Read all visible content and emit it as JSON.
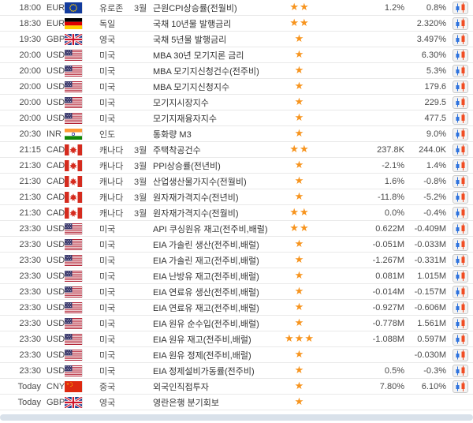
{
  "colors": {
    "star": "#f7941e",
    "chart_blue": "#2d72de",
    "chart_red": "#f14c22",
    "row_border": "#e9e9e9",
    "footer": "#d9e1ea",
    "event_text": "#333333",
    "body_text": "#4a4a4a"
  },
  "icons": {
    "star": "★",
    "chart_button": "candlestick-chart-icon"
  },
  "table": {
    "rows": [
      {
        "time": "18:00",
        "currency": "EUR",
        "flag": "eu",
        "country": "유로존",
        "month": "3월",
        "event": "근원CPI상승률(전월비)",
        "stars": 2,
        "value1": "1.2%",
        "value2": "0.8%",
        "chart": true
      },
      {
        "time": "18:30",
        "currency": "EUR",
        "flag": "de",
        "country": "독일",
        "month": "",
        "event": "국채 10년물 발행금리",
        "stars": 2,
        "value1": "",
        "value2": "2.320%",
        "chart": true
      },
      {
        "time": "19:30",
        "currency": "GBP",
        "flag": "gb",
        "country": "영국",
        "month": "",
        "event": "국채 5년물 발행금리",
        "stars": 1,
        "value1": "",
        "value2": "3.497%",
        "chart": true
      },
      {
        "time": "20:00",
        "currency": "USD",
        "flag": "us",
        "country": "미국",
        "month": "",
        "event": "MBA 30년 모기지론 금리",
        "stars": 1,
        "value1": "",
        "value2": "6.30%",
        "chart": true
      },
      {
        "time": "20:00",
        "currency": "USD",
        "flag": "us",
        "country": "미국",
        "month": "",
        "event": "MBA 모기지신청건수(전주비)",
        "stars": 1,
        "value1": "",
        "value2": "5.3%",
        "chart": true
      },
      {
        "time": "20:00",
        "currency": "USD",
        "flag": "us",
        "country": "미국",
        "month": "",
        "event": "MBA 모기지신청지수",
        "stars": 1,
        "value1": "",
        "value2": "179.6",
        "chart": true
      },
      {
        "time": "20:00",
        "currency": "USD",
        "flag": "us",
        "country": "미국",
        "month": "",
        "event": "모기지시장지수",
        "stars": 1,
        "value1": "",
        "value2": "229.5",
        "chart": true
      },
      {
        "time": "20:00",
        "currency": "USD",
        "flag": "us",
        "country": "미국",
        "month": "",
        "event": "모기지재융자지수",
        "stars": 1,
        "value1": "",
        "value2": "477.5",
        "chart": true
      },
      {
        "time": "20:30",
        "currency": "INR",
        "flag": "in",
        "country": "인도",
        "month": "",
        "event": "통화량 M3",
        "stars": 1,
        "value1": "",
        "value2": "9.0%",
        "chart": true
      },
      {
        "time": "21:15",
        "currency": "CAD",
        "flag": "ca",
        "country": "캐나다",
        "month": "3월",
        "event": "주택착공건수",
        "stars": 2,
        "value1": "237.8K",
        "value2": "244.0K",
        "chart": true
      },
      {
        "time": "21:30",
        "currency": "CAD",
        "flag": "ca",
        "country": "캐나다",
        "month": "3월",
        "event": "PPI상승률(전년비)",
        "stars": 1,
        "value1": "-2.1%",
        "value2": "1.4%",
        "chart": true
      },
      {
        "time": "21:30",
        "currency": "CAD",
        "flag": "ca",
        "country": "캐나다",
        "month": "3월",
        "event": "산업생산물가지수(전월비)",
        "stars": 1,
        "value1": "1.6%",
        "value2": "-0.8%",
        "chart": true
      },
      {
        "time": "21:30",
        "currency": "CAD",
        "flag": "ca",
        "country": "캐나다",
        "month": "3월",
        "event": "원자재가격지수(전년비)",
        "stars": 1,
        "value1": "-11.8%",
        "value2": "-5.2%",
        "chart": true
      },
      {
        "time": "21:30",
        "currency": "CAD",
        "flag": "ca",
        "country": "캐나다",
        "month": "3월",
        "event": "원자재가격지수(전월비)",
        "stars": 2,
        "value1": "0.0%",
        "value2": "-0.4%",
        "chart": true
      },
      {
        "time": "23:30",
        "currency": "USD",
        "flag": "us",
        "country": "미국",
        "month": "",
        "event": "API 쿠싱원유 재고(전주비,배럴)",
        "stars": 2,
        "value1": "0.622M",
        "value2": "-0.409M",
        "chart": true
      },
      {
        "time": "23:30",
        "currency": "USD",
        "flag": "us",
        "country": "미국",
        "month": "",
        "event": "EIA 가솔린 생산(전주비,배럴)",
        "stars": 1,
        "value1": "-0.051M",
        "value2": "-0.033M",
        "chart": true
      },
      {
        "time": "23:30",
        "currency": "USD",
        "flag": "us",
        "country": "미국",
        "month": "",
        "event": "EIA 가솔린 재고(전주비,배럴)",
        "stars": 1,
        "value1": "-1.267M",
        "value2": "-0.331M",
        "chart": true
      },
      {
        "time": "23:30",
        "currency": "USD",
        "flag": "us",
        "country": "미국",
        "month": "",
        "event": "EIA 난방유 재고(전주비,배럴)",
        "stars": 1,
        "value1": "0.081M",
        "value2": "1.015M",
        "chart": true
      },
      {
        "time": "23:30",
        "currency": "USD",
        "flag": "us",
        "country": "미국",
        "month": "",
        "event": "EIA 연료유 생산(전주비,배럴)",
        "stars": 1,
        "value1": "-0.014M",
        "value2": "-0.157M",
        "chart": true
      },
      {
        "time": "23:30",
        "currency": "USD",
        "flag": "us",
        "country": "미국",
        "month": "",
        "event": "EIA 연료유 재고(전주비,배럴)",
        "stars": 1,
        "value1": "-0.927M",
        "value2": "-0.606M",
        "chart": true
      },
      {
        "time": "23:30",
        "currency": "USD",
        "flag": "us",
        "country": "미국",
        "month": "",
        "event": "EIA 원유 순수입(전주비,배럴)",
        "stars": 1,
        "value1": "-0.778M",
        "value2": "1.561M",
        "chart": true
      },
      {
        "time": "23:30",
        "currency": "USD",
        "flag": "us",
        "country": "미국",
        "month": "",
        "event": "EIA 원유 재고(전주비,배럴)",
        "stars": 3,
        "value1": "-1.088M",
        "value2": "0.597M",
        "chart": true
      },
      {
        "time": "23:30",
        "currency": "USD",
        "flag": "us",
        "country": "미국",
        "month": "",
        "event": "EIA 원유 정제(전주비,배럴)",
        "stars": 1,
        "value1": "",
        "value2": "-0.030M",
        "chart": true
      },
      {
        "time": "23:30",
        "currency": "USD",
        "flag": "us",
        "country": "미국",
        "month": "",
        "event": "EIA 정제설비가동률(전주비)",
        "stars": 1,
        "value1": "0.5%",
        "value2": "-0.3%",
        "chart": true
      },
      {
        "time": "Today",
        "currency": "CNY",
        "flag": "cn",
        "country": "중국",
        "month": "",
        "event": "외국인직접투자",
        "stars": 1,
        "value1": "7.80%",
        "value2": "6.10%",
        "chart": true
      },
      {
        "time": "Today",
        "currency": "GBP",
        "flag": "gb",
        "country": "영국",
        "month": "",
        "event": "영란은행 분기회보",
        "stars": 1,
        "value1": "",
        "value2": "",
        "chart": false
      }
    ]
  }
}
